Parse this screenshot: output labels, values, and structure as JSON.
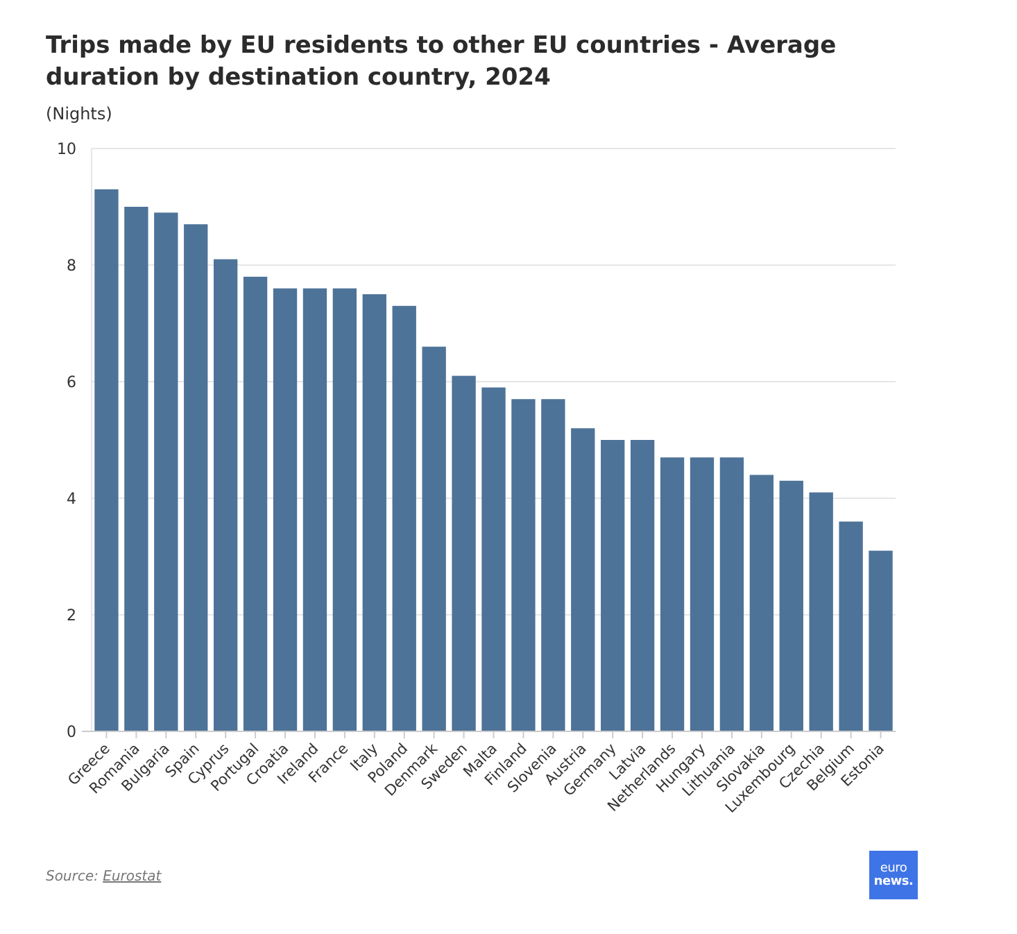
{
  "header": {
    "title": "Trips made by EU residents to other EU countries - Average duration by destination country, 2024",
    "subtitle": "(Nights)"
  },
  "footer": {
    "source_prefix": "Source: ",
    "source_link": "Eurostat"
  },
  "logo": {
    "line1": "euro",
    "line2": "news."
  },
  "colors": {
    "bar": "#4e7399",
    "grid": "#e6e6e6",
    "axis": "#cccccc",
    "text": "#333333",
    "logo_bg": "#3f74e6"
  },
  "chart_data": {
    "type": "bar",
    "title": "Trips made by EU residents to other EU countries - Average duration by destination country, 2024",
    "subtitle": "(Nights)",
    "xlabel": "",
    "ylabel": "",
    "ylim": [
      0,
      10
    ],
    "yticks": [
      0,
      2,
      4,
      6,
      8,
      10
    ],
    "grid": true,
    "categories": [
      "Greece",
      "Romania",
      "Bulgaria",
      "Spain",
      "Cyprus",
      "Portugal",
      "Croatia",
      "Ireland",
      "France",
      "Italy",
      "Poland",
      "Denmark",
      "Sweden",
      "Malta",
      "Finland",
      "Slovenia",
      "Austria",
      "Germany",
      "Latvia",
      "Netherlands",
      "Hungary",
      "Lithuania",
      "Slovakia",
      "Luxembourg",
      "Czechia",
      "Belgium",
      "Estonia"
    ],
    "values": [
      9.3,
      9.0,
      8.9,
      8.7,
      8.1,
      7.8,
      7.6,
      7.6,
      7.6,
      7.5,
      7.3,
      6.6,
      6.1,
      5.9,
      5.7,
      5.7,
      5.2,
      5.0,
      5.0,
      4.7,
      4.7,
      4.7,
      4.4,
      4.3,
      4.1,
      3.6,
      3.1
    ]
  }
}
